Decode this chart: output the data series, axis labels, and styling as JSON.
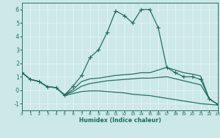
{
  "xlabel": "Humidex (Indice chaleur)",
  "xlim": [
    0,
    23
  ],
  "ylim": [
    -1.5,
    6.5
  ],
  "xticks": [
    0,
    1,
    2,
    3,
    4,
    5,
    6,
    7,
    8,
    9,
    10,
    11,
    12,
    13,
    14,
    15,
    16,
    17,
    18,
    19,
    20,
    21,
    22,
    23
  ],
  "yticks": [
    -1,
    0,
    1,
    2,
    3,
    4,
    5,
    6
  ],
  "bg_color": "#cce8e8",
  "line_color": "#1a6b5a",
  "grid_color": "#e8f5f5",
  "line1_x": [
    0,
    1,
    2,
    3,
    4,
    5,
    6,
    7,
    8,
    9,
    10,
    11,
    12,
    13,
    14,
    15,
    16,
    17,
    18,
    19,
    20,
    21,
    22,
    23
  ],
  "line1_y": [
    1.3,
    0.8,
    0.65,
    0.25,
    0.2,
    -0.35,
    0.3,
    1.1,
    2.45,
    3.0,
    4.3,
    5.9,
    5.55,
    5.0,
    6.0,
    6.0,
    4.65,
    1.7,
    1.3,
    1.0,
    1.0,
    0.8,
    -0.65,
    -1.05
  ],
  "line2_x": [
    0,
    1,
    2,
    3,
    4,
    5,
    6,
    7,
    8,
    9,
    10,
    11,
    12,
    13,
    14,
    15,
    16,
    17,
    18,
    19,
    20,
    21,
    22,
    23
  ],
  "line2_y": [
    1.3,
    0.8,
    0.65,
    0.25,
    0.2,
    -0.35,
    0.05,
    0.65,
    0.85,
    0.9,
    1.0,
    1.1,
    1.15,
    1.2,
    1.3,
    1.3,
    1.5,
    1.7,
    1.5,
    1.3,
    1.2,
    1.05,
    -0.65,
    -1.05
  ],
  "line3_x": [
    0,
    1,
    2,
    3,
    4,
    5,
    6,
    7,
    8,
    9,
    10,
    11,
    12,
    13,
    14,
    15,
    16,
    17,
    18,
    19,
    20,
    21,
    22,
    23
  ],
  "line3_y": [
    1.3,
    0.8,
    0.65,
    0.25,
    0.2,
    -0.35,
    -0.1,
    0.3,
    0.5,
    0.6,
    0.7,
    0.75,
    0.8,
    0.85,
    0.9,
    0.9,
    0.95,
    1.0,
    0.85,
    0.7,
    0.55,
    0.4,
    -0.65,
    -1.05
  ],
  "line4_x": [
    0,
    1,
    2,
    3,
    4,
    5,
    6,
    7,
    8,
    9,
    10,
    11,
    12,
    13,
    14,
    15,
    16,
    17,
    18,
    19,
    20,
    21,
    22,
    23
  ],
  "line4_y": [
    1.3,
    0.8,
    0.65,
    0.25,
    0.2,
    -0.4,
    -0.25,
    -0.1,
    -0.05,
    -0.05,
    -0.1,
    -0.15,
    -0.2,
    -0.3,
    -0.35,
    -0.4,
    -0.5,
    -0.6,
    -0.7,
    -0.8,
    -0.9,
    -1.0,
    -1.05,
    -1.1
  ]
}
